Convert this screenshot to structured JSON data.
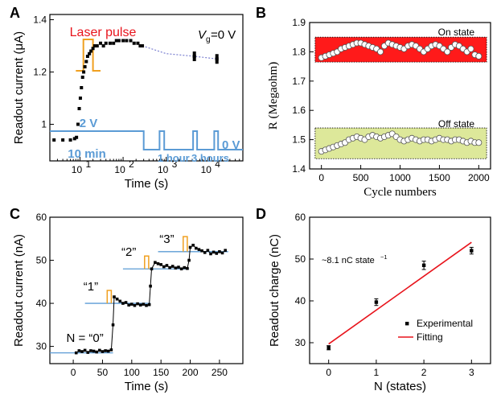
{
  "colors": {
    "orange": "#f0a020",
    "blue": "#5b9bd5",
    "dashed_blue": "#7a7fd0",
    "red_fill": "#ff1a1a",
    "green_fill": "#dde89a",
    "red_line": "#e8141c",
    "label_red": "#e8141c"
  },
  "panels": {
    "A": {
      "letter": "A"
    },
    "B": {
      "letter": "B"
    },
    "C": {
      "letter": "C"
    },
    "D": {
      "letter": "D"
    }
  },
  "chart_data": [
    {
      "id": "A",
      "type": "scatter",
      "xscale": "log",
      "xlabel": "Time (s)",
      "ylabel": "Readout current (μA)",
      "xlim": [
        2,
        60000
      ],
      "ylim": [
        0.86,
        1.42
      ],
      "xticks": [
        {
          "v": 10,
          "label": "10",
          "sup": "1"
        },
        {
          "v": 100,
          "label": "10",
          "sup": "2"
        },
        {
          "v": 1000,
          "label": "10",
          "sup": "3"
        },
        {
          "v": 10000,
          "label": "10",
          "sup": "4"
        }
      ],
      "yticks": [
        1.0,
        1.2,
        1.4
      ],
      "annotations": {
        "laser_pulse": "Laser pulse",
        "vg_label": "V",
        "vg_sub": "g",
        "vg_value": "=0 V",
        "gate_high": "2 V",
        "gate_low": "0 V",
        "interval_1": "10 min",
        "interval_2": "1 hour",
        "interval_3": "3 hours"
      },
      "series": [
        {
          "x": [
            2.5,
            4,
            6,
            7.5,
            8.3,
            9,
            9.6,
            10.2,
            10.8,
            11.5,
            12.2,
            13,
            14,
            15,
            16.5,
            18,
            20,
            22,
            25,
            30,
            35,
            40,
            50,
            60,
            70,
            80,
            100,
            120,
            150,
            180,
            220,
            250,
            280
          ],
          "y": [
            0.94,
            0.94,
            0.94,
            0.945,
            0.95,
            1.0,
            1.06,
            1.1,
            1.14,
            1.18,
            1.2,
            1.22,
            1.24,
            1.26,
            1.27,
            1.28,
            1.29,
            1.3,
            1.3,
            1.31,
            1.3,
            1.31,
            1.31,
            1.31,
            1.32,
            1.32,
            1.32,
            1.32,
            1.32,
            1.31,
            1.31,
            1.3,
            1.3
          ]
        },
        {
          "x": [
            4500,
            15000
          ],
          "y": [
            1.26,
            1.25
          ]
        }
      ],
      "fit": {
        "x": [
          280,
          1000,
          4500,
          15000
        ],
        "y": [
          1.3,
          1.27,
          1.26,
          1.25
        ]
      }
    },
    {
      "id": "B",
      "type": "scatter",
      "xlabel": "Cycle numbers",
      "ylabel": "R (Megaohm)",
      "xlim": [
        -150,
        2150
      ],
      "ylim": [
        1.4,
        1.9
      ],
      "xticks": [
        0,
        500,
        1000,
        1500,
        2000
      ],
      "yticks": [
        1.4,
        1.5,
        1.6,
        1.7,
        1.8,
        1.9
      ],
      "band_labels": {
        "on": "On state",
        "off": "Off state"
      },
      "on_band": [
        1.765,
        1.85
      ],
      "off_band": [
        1.435,
        1.54
      ],
      "series": [
        {
          "name": "On state",
          "x": [
            0,
            50,
            100,
            150,
            200,
            250,
            300,
            350,
            400,
            450,
            500,
            550,
            600,
            650,
            700,
            750,
            800,
            850,
            900,
            950,
            1000,
            1050,
            1100,
            1150,
            1200,
            1250,
            1300,
            1350,
            1400,
            1450,
            1500,
            1550,
            1600,
            1650,
            1700,
            1750,
            1800,
            1850,
            1900,
            1950,
            2000
          ],
          "y": [
            1.78,
            1.785,
            1.79,
            1.795,
            1.8,
            1.81,
            1.815,
            1.82,
            1.825,
            1.83,
            1.83,
            1.825,
            1.82,
            1.815,
            1.81,
            1.8,
            1.82,
            1.83,
            1.825,
            1.82,
            1.815,
            1.81,
            1.82,
            1.825,
            1.82,
            1.81,
            1.8,
            1.81,
            1.82,
            1.825,
            1.82,
            1.81,
            1.8,
            1.815,
            1.825,
            1.82,
            1.81,
            1.8,
            1.81,
            1.79,
            1.785
          ]
        },
        {
          "name": "Off state",
          "x": [
            0,
            50,
            100,
            150,
            200,
            250,
            300,
            350,
            400,
            450,
            500,
            550,
            600,
            650,
            700,
            750,
            800,
            850,
            900,
            950,
            1000,
            1050,
            1100,
            1150,
            1200,
            1250,
            1300,
            1350,
            1400,
            1450,
            1500,
            1550,
            1600,
            1650,
            1700,
            1750,
            1800,
            1850,
            1900,
            1950,
            2000
          ],
          "y": [
            1.46,
            1.465,
            1.47,
            1.475,
            1.48,
            1.485,
            1.49,
            1.5,
            1.505,
            1.51,
            1.505,
            1.5,
            1.51,
            1.515,
            1.51,
            1.505,
            1.51,
            1.515,
            1.52,
            1.51,
            1.5,
            1.495,
            1.5,
            1.505,
            1.5,
            1.495,
            1.5,
            1.5,
            1.495,
            1.5,
            1.505,
            1.5,
            1.5,
            1.495,
            1.5,
            1.5,
            1.495,
            1.49,
            1.495,
            1.49,
            1.49
          ]
        }
      ]
    },
    {
      "id": "C",
      "type": "scatter",
      "xlabel": "Time (s)",
      "ylabel": "Readout current (nA)",
      "xlim": [
        -40,
        290
      ],
      "ylim": [
        26,
        60
      ],
      "xticks": [
        0,
        50,
        100,
        150,
        200,
        250
      ],
      "yticks": [
        30,
        40,
        50,
        60
      ],
      "state_labels": [
        {
          "text": "N = “0”",
          "x": 20,
          "y": 31
        },
        {
          "text": "“1”",
          "x": 30,
          "y": 43
        },
        {
          "text": "“2”",
          "x": 95,
          "y": 51
        },
        {
          "text": "“3”",
          "x": 160,
          "y": 54
        }
      ],
      "levels": [
        {
          "x0": -40,
          "x1": 68,
          "y": 28.5
        },
        {
          "x0": 20,
          "x1": 132,
          "y": 40
        },
        {
          "x0": 85,
          "x1": 198,
          "y": 48
        },
        {
          "x0": 145,
          "x1": 265,
          "y": 52
        }
      ],
      "pulses": [
        {
          "x0": 58,
          "x1": 65,
          "y0": 40,
          "y1": 43
        },
        {
          "x0": 122,
          "x1": 129,
          "y0": 48,
          "y1": 51
        },
        {
          "x0": 188,
          "x1": 195,
          "y0": 52,
          "y1": 55.5
        }
      ],
      "series": [
        {
          "x": [
            5,
            10,
            15,
            20,
            25,
            30,
            35,
            40,
            45,
            50,
            55,
            60,
            65,
            68,
            70,
            75,
            80,
            85,
            90,
            95,
            100,
            105,
            110,
            115,
            120,
            125,
            130,
            132,
            134,
            140,
            145,
            150,
            155,
            160,
            165,
            170,
            175,
            180,
            185,
            190,
            195,
            198,
            200,
            205,
            210,
            215,
            220,
            225,
            230,
            235,
            240,
            245,
            250,
            255,
            260
          ],
          "y": [
            28.5,
            29,
            28.8,
            29.1,
            28.6,
            29,
            28.9,
            28.7,
            29.1,
            28.8,
            29,
            28.9,
            29.2,
            35,
            41.5,
            41,
            40.5,
            40,
            40.2,
            39.6,
            39.8,
            39.5,
            39.9,
            39.6,
            39.8,
            39.5,
            39.7,
            44,
            48,
            49.5,
            49.2,
            49,
            48.5,
            48.8,
            48.3,
            48.6,
            48.2,
            48.4,
            48,
            48.3,
            48.1,
            50,
            53,
            53.5,
            52.8,
            52.5,
            52.2,
            51.8,
            52.3,
            51.5,
            51.9,
            51.6,
            52,
            51.7,
            52.3
          ]
        }
      ]
    },
    {
      "id": "D",
      "type": "scatter",
      "xlabel": "N (states)",
      "ylabel": "Readout charge (nC)",
      "xlim": [
        -0.4,
        3.4
      ],
      "ylim": [
        25,
        60
      ],
      "xticks": [
        0,
        1,
        2,
        3
      ],
      "yticks": [
        30,
        40,
        50,
        60
      ],
      "annotation": "~8.1 nC state",
      "annotation_sup": "−1",
      "legend": {
        "experimental": "Experimental",
        "fitting": "Fitting"
      },
      "series": [
        {
          "name": "Experimental",
          "x": [
            0,
            1,
            2,
            3
          ],
          "y": [
            28.8,
            39.7,
            48.5,
            52
          ],
          "err": [
            0.5,
            0.8,
            1.0,
            0.8
          ]
        }
      ],
      "fit": {
        "x": [
          0,
          3
        ],
        "y": [
          29.7,
          54
        ]
      }
    }
  ]
}
